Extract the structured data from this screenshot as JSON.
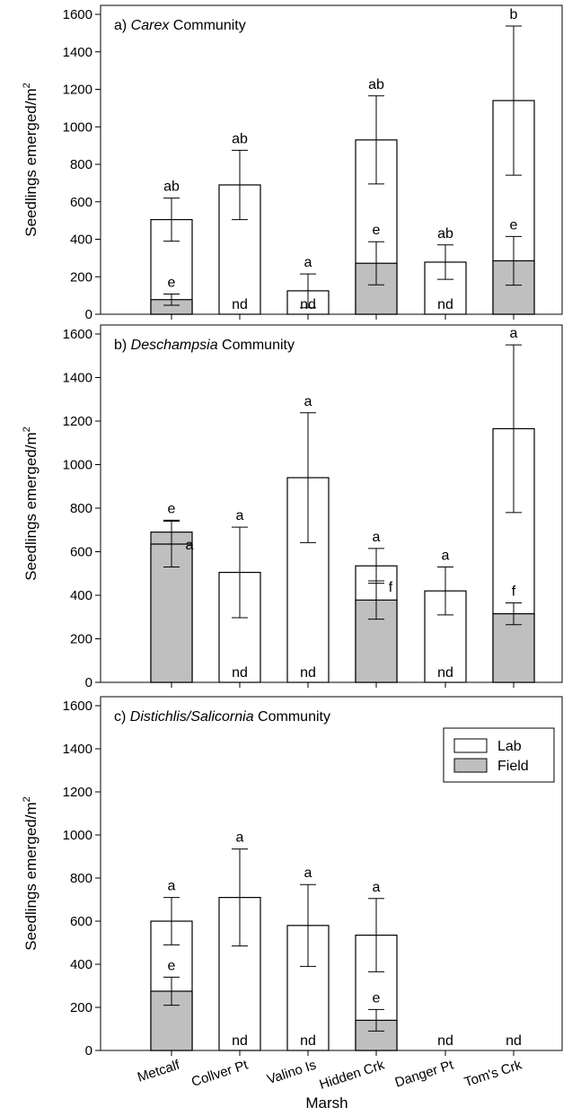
{
  "chart_data": [
    {
      "type": "bar",
      "panel_letter": "a)",
      "title_italic": "Carex",
      "title_rest": " Community",
      "ylabel": "Seedlings emerged/m",
      "ylabel_superscript": "2",
      "ylim": [
        0,
        1600
      ],
      "yticks": [
        0,
        200,
        400,
        600,
        800,
        1000,
        1200,
        1400,
        1600
      ],
      "categories": [
        "Metcalf",
        "Collver Pt",
        "Valino Is",
        "Hidden Crk",
        "Danger Pt",
        "Tom's Crk"
      ],
      "series": [
        {
          "name": "Lab",
          "values": [
            505,
            690,
            125,
            930,
            278,
            1140
          ],
          "err": [
            115,
            185,
            90,
            235,
            92,
            398
          ],
          "labels": [
            "ab",
            "ab",
            "a",
            "ab",
            "ab",
            "b"
          ]
        },
        {
          "name": "Field",
          "values": [
            78,
            null,
            null,
            272,
            null,
            285
          ],
          "err": [
            30,
            null,
            null,
            115,
            null,
            130
          ],
          "labels": [
            "e",
            "nd",
            "nd",
            "e",
            "nd",
            "e"
          ]
        }
      ]
    },
    {
      "type": "bar",
      "panel_letter": "b)",
      "title_italic": "Deschampsia",
      "title_rest": " Community",
      "ylabel": "Seedlings emerged/m",
      "ylabel_superscript": "2",
      "ylim": [
        0,
        1600
      ],
      "yticks": [
        0,
        200,
        400,
        600,
        800,
        1000,
        1200,
        1400,
        1600
      ],
      "categories": [
        "Metcalf",
        "Collver Pt",
        "Valino Is",
        "Hidden Crk",
        "Danger Pt",
        "Tom's Crk"
      ],
      "series": [
        {
          "name": "Lab",
          "values": [
            635,
            505,
            940,
            535,
            420,
            1165
          ],
          "err": [
            105,
            208,
            298,
            80,
            110,
            385
          ],
          "labels": [
            "a",
            "a",
            "a",
            "a",
            "a",
            "a"
          ]
        },
        {
          "name": "Field",
          "values": [
            690,
            null,
            null,
            378,
            null,
            315
          ],
          "err": [
            55,
            null,
            null,
            88,
            null,
            50
          ],
          "labels": [
            "e",
            "nd",
            "nd",
            "f",
            "nd",
            "f"
          ]
        }
      ]
    },
    {
      "type": "bar",
      "panel_letter": "c)",
      "title_italic": "Distichlis/Salicornia",
      "title_rest": " Community",
      "ylabel": "Seedlings emerged/m",
      "ylabel_superscript": "2",
      "xlabel": "Marsh",
      "ylim": [
        0,
        1600
      ],
      "yticks": [
        0,
        200,
        400,
        600,
        800,
        1000,
        1200,
        1400,
        1600
      ],
      "categories": [
        "Metcalf",
        "Collver Pt",
        "Valino Is",
        "Hidden Crk",
        "Danger Pt",
        "Tom's Crk"
      ],
      "legend": {
        "position": "top-right",
        "entries": [
          "Lab",
          "Field"
        ]
      },
      "series": [
        {
          "name": "Lab",
          "values": [
            600,
            710,
            580,
            535,
            null,
            null
          ],
          "err": [
            110,
            225,
            190,
            170,
            null,
            null
          ],
          "labels": [
            "a",
            "a",
            "a",
            "a",
            "nd",
            "nd"
          ]
        },
        {
          "name": "Field",
          "values": [
            275,
            null,
            null,
            140,
            null,
            null
          ],
          "err": [
            65,
            null,
            null,
            50,
            null,
            null
          ],
          "labels": [
            "e",
            "nd",
            "nd",
            "e",
            "",
            ""
          ]
        }
      ]
    }
  ],
  "colors": {
    "lab_fill": "#ffffff",
    "field_fill": "#bfbfbf",
    "stroke": "#000000"
  }
}
